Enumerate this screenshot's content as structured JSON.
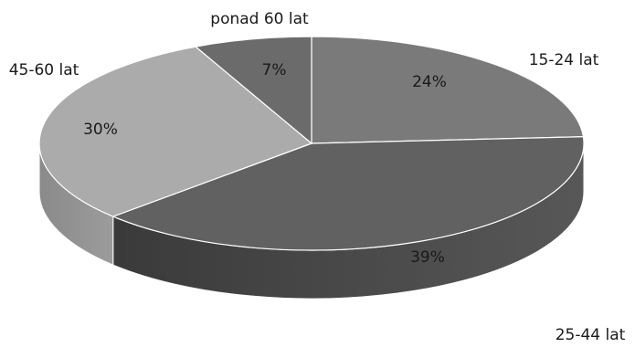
{
  "chart_data": {
    "type": "pie",
    "style": "3d",
    "title": "",
    "slices": [
      {
        "label": "15-24 lat",
        "value": 24,
        "value_label": "24%",
        "color": "#7a7a7a",
        "side_color": "#5e5e5e"
      },
      {
        "label": "25-44 lat",
        "value": 39,
        "value_label": "39%",
        "color": "#616161",
        "side_color": "#3a3a3a"
      },
      {
        "label": "45-60 lat",
        "value": 30,
        "value_label": "30%",
        "color": "#ababab",
        "side_color": "#8a8a8a"
      },
      {
        "label": "ponad 60 lat",
        "value": 7,
        "value_label": "7%",
        "color": "#6b6b6b",
        "side_color": "#505050"
      }
    ]
  }
}
